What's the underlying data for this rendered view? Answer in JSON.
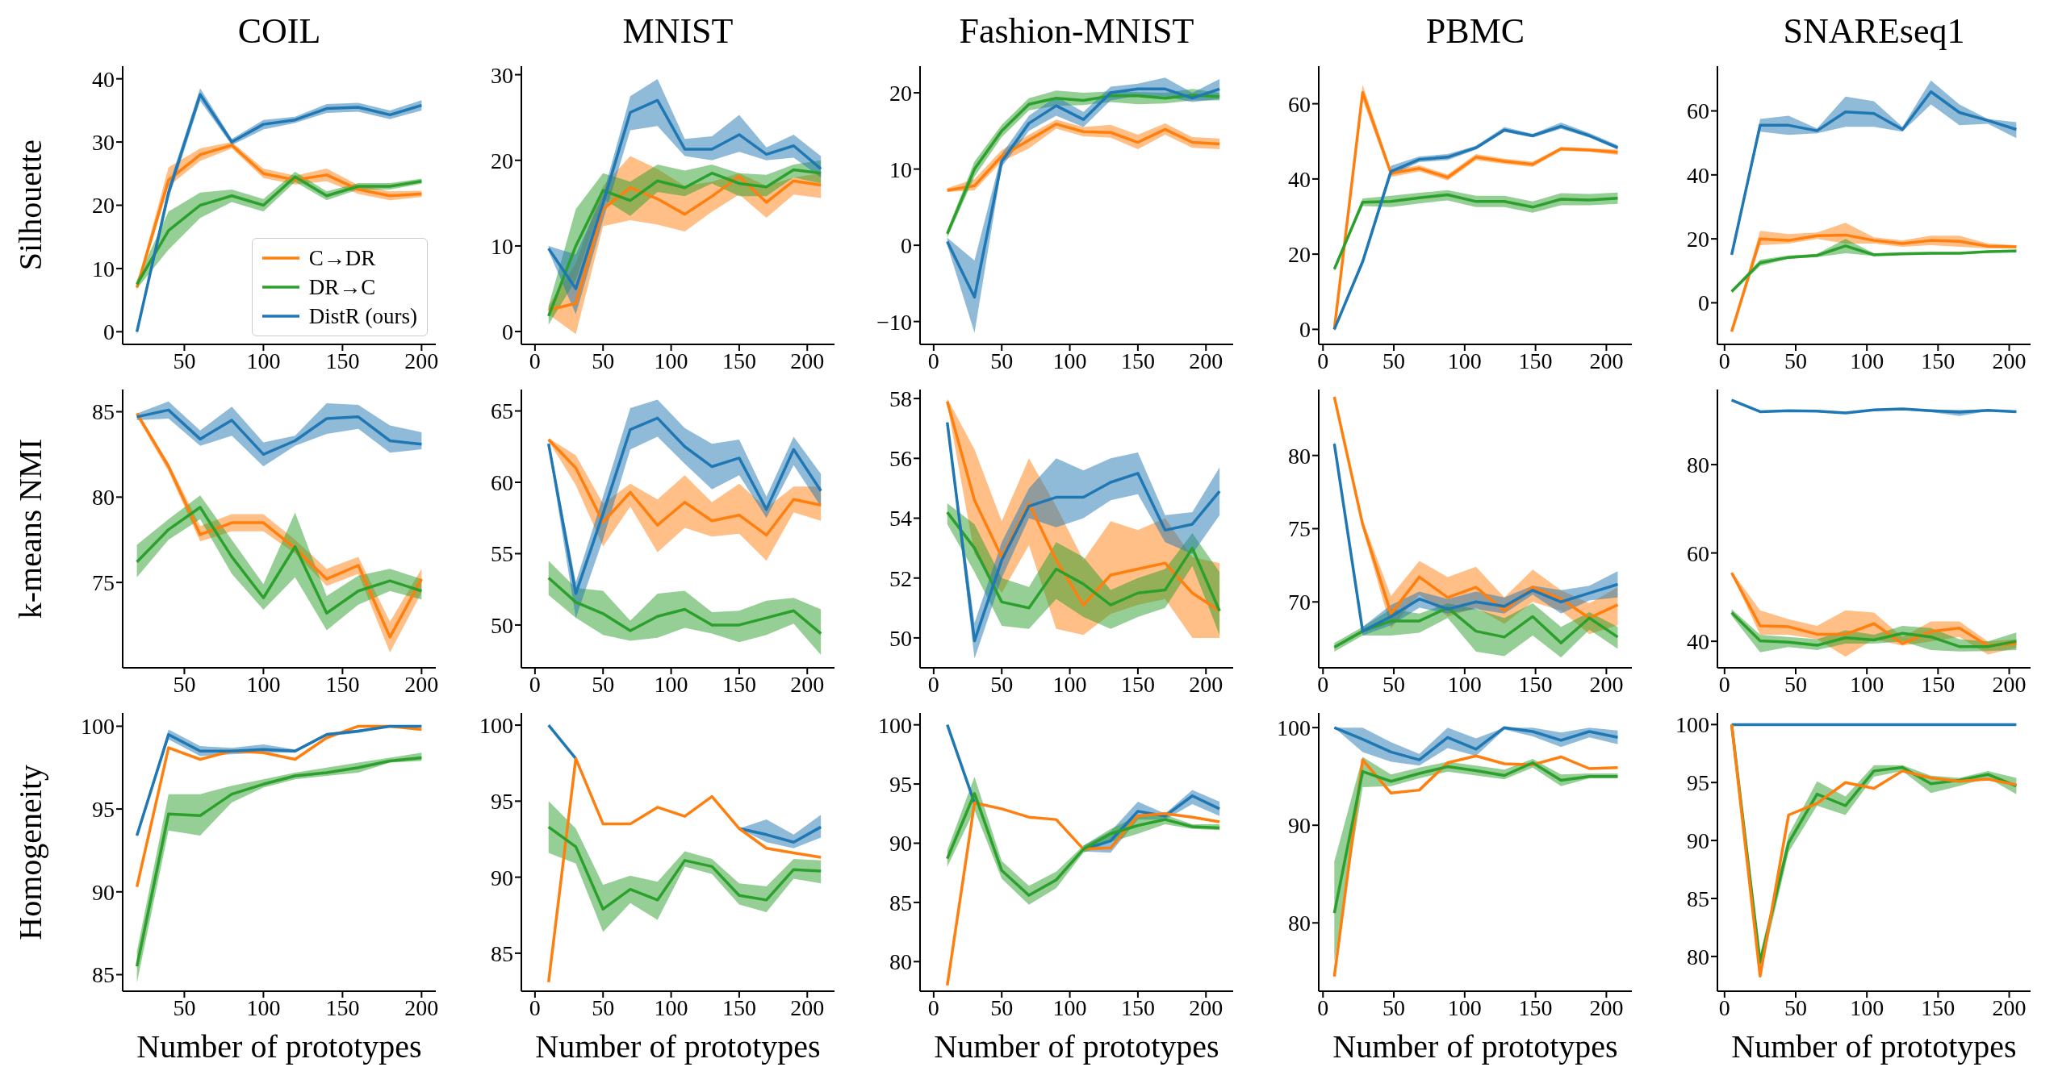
{
  "chart_data": [
    {
      "type": "line",
      "title": "COIL",
      "ylabel": "Silhouette",
      "legend": "lower right",
      "x": [
        20,
        40,
        60,
        80,
        100,
        120,
        140,
        160,
        180,
        200
      ],
      "xlim": [
        11,
        209
      ],
      "xticks": [
        50,
        100,
        150,
        200
      ],
      "ylim": [
        -2,
        42
      ],
      "yticks": [
        0,
        10,
        20,
        30,
        40
      ],
      "series": [
        {
          "name": "C→DR",
          "color": "#ff7f0e",
          "values": [
            7,
            24,
            28,
            29.5,
            25,
            24,
            24.8,
            22.5,
            21.5,
            21.8
          ],
          "lower": [
            6.5,
            23,
            27,
            29,
            24.3,
            23.3,
            23.8,
            21.8,
            20.8,
            21.3
          ],
          "upper": [
            7.5,
            26,
            29,
            30,
            25.8,
            24.7,
            25.8,
            23.2,
            22.2,
            22.3
          ]
        },
        {
          "name": "DR→C",
          "color": "#2ca02c",
          "values": [
            7.5,
            16,
            20,
            21.5,
            20,
            24.5,
            21.5,
            23,
            23,
            23.8
          ],
          "lower": [
            6.8,
            13,
            18,
            20.5,
            19,
            23.7,
            20.8,
            22.5,
            22.5,
            23.4
          ],
          "upper": [
            8.2,
            19,
            22,
            22.5,
            21,
            25.3,
            22.2,
            23.5,
            23.5,
            24.2
          ]
        },
        {
          "name": "DistR (ours)",
          "color": "#1f77b4",
          "values": [
            0,
            22,
            37.5,
            30,
            32.8,
            33.5,
            35.3,
            35.5,
            34.3,
            35.8
          ],
          "lower": [
            -0.5,
            21,
            36.5,
            29.5,
            32,
            33,
            34.6,
            34.8,
            33.6,
            35
          ],
          "upper": [
            0.5,
            23,
            38.5,
            30.5,
            33.5,
            34,
            36,
            36.2,
            35,
            36.6
          ]
        }
      ]
    },
    {
      "type": "line",
      "title": "MNIST",
      "x": [
        10,
        30,
        50,
        70,
        90,
        110,
        130,
        150,
        170,
        190,
        210
      ],
      "xlim": [
        -10,
        220
      ],
      "xticks": [
        0,
        50,
        100,
        150,
        200
      ],
      "ylim": [
        -1.5,
        31
      ],
      "yticks": [
        0,
        10,
        20,
        30
      ],
      "series": [
        {
          "color": "#ff7f0e",
          "values": [
            2.5,
            3.3,
            14.3,
            16.8,
            15.5,
            13.7,
            15.8,
            18.1,
            15.1,
            17.6,
            17.1
          ],
          "lower": [
            2,
            -0.3,
            12.3,
            13,
            12.5,
            11.7,
            14,
            16,
            13.3,
            16,
            15.6
          ],
          "upper": [
            3,
            8,
            17,
            20.5,
            19,
            17,
            17.5,
            18.5,
            17,
            18,
            18.5
          ]
        },
        {
          "color": "#2ca02c",
          "values": [
            1.8,
            10,
            16.5,
            15.3,
            17.6,
            16.8,
            18.5,
            17.3,
            16.9,
            18.9,
            18.5
          ],
          "lower": [
            0.8,
            6,
            15.5,
            13.5,
            16.3,
            15.8,
            17.3,
            15.8,
            15.8,
            18,
            17.3
          ],
          "upper": [
            3,
            14.3,
            18.5,
            17.5,
            19.5,
            18.8,
            19.5,
            18.5,
            18.3,
            19.5,
            20
          ]
        },
        {
          "color": "#1f77b4",
          "values": [
            9.7,
            5,
            15,
            25.6,
            27,
            21.3,
            21.3,
            23,
            20.7,
            21.7,
            19
          ],
          "lower": [
            9.4,
            2,
            13,
            23.5,
            24,
            20.5,
            20,
            21,
            20,
            20.3,
            18
          ],
          "upper": [
            10,
            9,
            16,
            27.5,
            29.5,
            22.5,
            22.8,
            25.3,
            21.5,
            23,
            20.5
          ]
        }
      ]
    },
    {
      "type": "line",
      "title": "Fashion-MNIST",
      "x": [
        10,
        30,
        50,
        70,
        90,
        110,
        130,
        150,
        170,
        190,
        210
      ],
      "xlim": [
        -10,
        220
      ],
      "xticks": [
        0,
        50,
        100,
        150,
        200
      ],
      "ylim": [
        -13,
        23.5
      ],
      "yticks": [
        {
          "value": -10,
          "label": "−10"
        },
        0,
        10,
        20
      ],
      "series": [
        {
          "color": "#ff7f0e",
          "values": [
            7.2,
            7.8,
            11.7,
            13.8,
            15.9,
            14.9,
            14.8,
            13.5,
            15.2,
            13.5,
            13.3
          ],
          "lower": [
            7,
            7.2,
            11,
            12.7,
            15.3,
            14.3,
            14.1,
            12.6,
            14.5,
            12.8,
            12.6
          ],
          "upper": [
            7.5,
            8.7,
            12.5,
            14.5,
            16.5,
            15.5,
            15.8,
            14.5,
            16,
            14.2,
            14
          ]
        },
        {
          "color": "#2ca02c",
          "values": [
            1.5,
            10,
            15,
            18.5,
            19.3,
            19,
            19.6,
            19.6,
            19.3,
            19.7,
            19.5
          ],
          "lower": [
            1,
            9,
            14.2,
            17.7,
            18.3,
            18.4,
            18.8,
            18.5,
            18.6,
            19,
            19
          ],
          "upper": [
            2,
            11,
            15.8,
            19.3,
            20.3,
            20,
            20.2,
            20.1,
            20,
            20.5,
            20
          ]
        },
        {
          "color": "#1f77b4",
          "values": [
            0.5,
            -6.8,
            11,
            16,
            18.3,
            16.5,
            20,
            20.5,
            20.5,
            19.3,
            20.5
          ],
          "lower": [
            0,
            -11.5,
            10.3,
            15,
            17,
            15.5,
            19,
            19.6,
            19.5,
            18.8,
            19.2
          ],
          "upper": [
            1,
            -2,
            12,
            17,
            19.5,
            17.5,
            20.8,
            21.2,
            22,
            20,
            21.8
          ]
        }
      ]
    },
    {
      "type": "line",
      "title": "PBMC",
      "x": [
        8,
        28,
        48,
        68,
        88,
        108,
        128,
        148,
        168,
        188,
        208
      ],
      "xlim": [
        -3,
        218
      ],
      "xticks": [
        0,
        50,
        100,
        150,
        200
      ],
      "ylim": [
        -4,
        70
      ],
      "yticks": [
        0,
        20,
        40,
        60
      ],
      "series": [
        {
          "color": "#ff7f0e",
          "values": [
            0,
            63,
            41.5,
            42.8,
            40.4,
            45.8,
            44.7,
            43.9,
            48,
            47.7,
            47.1
          ],
          "lower": [
            -0.5,
            61,
            40.5,
            42,
            39.6,
            45,
            44,
            43.2,
            47.5,
            47.2,
            46.4
          ],
          "upper": [
            0.5,
            65,
            42.5,
            43.6,
            41.2,
            46.6,
            45.4,
            44.6,
            48.5,
            48.2,
            47.8
          ]
        },
        {
          "color": "#2ca02c",
          "values": [
            16,
            33.8,
            34,
            35,
            35.8,
            34,
            34,
            32.5,
            34.6,
            34.4,
            34.9
          ],
          "lower": [
            15.5,
            32.8,
            32.5,
            33.5,
            34.3,
            32.5,
            32.5,
            31,
            33,
            33,
            33.4
          ],
          "upper": [
            16.5,
            34.8,
            35.5,
            36.3,
            37,
            35.5,
            35.5,
            34,
            36.2,
            36,
            36.4
          ]
        },
        {
          "color": "#1f77b4",
          "values": [
            0,
            18,
            42,
            45.2,
            45.8,
            48.3,
            53,
            51.5,
            54,
            51.5,
            48.3
          ],
          "lower": [
            -0.5,
            17,
            41,
            44.5,
            45,
            47.8,
            52.5,
            51,
            53.3,
            51,
            47.8
          ],
          "upper": [
            0.5,
            19,
            43.5,
            46,
            46.6,
            48.8,
            53.8,
            52,
            55,
            52.2,
            49
          ]
        }
      ]
    },
    {
      "type": "line",
      "title": "SNAREseq1",
      "x": [
        5,
        25,
        45,
        65,
        85,
        105,
        125,
        145,
        165,
        185,
        205
      ],
      "xlim": [
        -5,
        215
      ],
      "xticks": [
        0,
        50,
        100,
        150,
        200
      ],
      "ylim": [
        -13,
        74
      ],
      "yticks": [
        0,
        20,
        40,
        60
      ],
      "series": [
        {
          "color": "#ff7f0e",
          "values": [
            -9,
            20,
            19.5,
            21,
            21.2,
            19.5,
            18.5,
            19.5,
            19.2,
            17.7,
            17.5
          ],
          "lower": [
            -9.5,
            18,
            18.5,
            20,
            18.5,
            18.5,
            17.5,
            18,
            17.5,
            17,
            17
          ],
          "upper": [
            -8.5,
            22.5,
            21.5,
            22,
            25,
            20.5,
            19.5,
            21,
            21,
            18.5,
            18
          ]
        },
        {
          "color": "#2ca02c",
          "values": [
            3.5,
            12.5,
            14.2,
            14.8,
            17.8,
            15,
            15.3,
            15.5,
            15.5,
            16,
            16.2
          ],
          "lower": [
            3,
            11.5,
            13.8,
            14.3,
            15.5,
            14.7,
            15,
            15.2,
            15.2,
            15.7,
            15.9
          ],
          "upper": [
            4,
            13.5,
            14.8,
            15.3,
            20,
            15.5,
            15.8,
            15.8,
            15.8,
            16.3,
            16.6
          ]
        },
        {
          "color": "#1f77b4",
          "values": [
            15,
            55.5,
            55.5,
            53.8,
            59.7,
            59.2,
            54.2,
            66,
            59.5,
            57,
            54.2
          ],
          "lower": [
            14.5,
            53.5,
            52.5,
            53,
            55,
            55,
            53.5,
            62,
            55.5,
            56,
            51.5
          ],
          "upper": [
            15.5,
            57.5,
            58.5,
            54.5,
            64.5,
            63,
            55,
            69.5,
            62,
            57.5,
            56.5
          ]
        }
      ]
    },
    {
      "type": "line",
      "ylabel": "k-means NMI",
      "x": [
        20,
        40,
        60,
        80,
        100,
        120,
        140,
        160,
        180,
        200
      ],
      "xlim": [
        11,
        209
      ],
      "xticks": [
        50,
        100,
        150,
        200
      ],
      "ylim": [
        70,
        86.3
      ],
      "yticks": [
        75,
        80,
        85
      ],
      "series": [
        {
          "color": "#ff7f0e",
          "values": [
            84.9,
            81.8,
            77.8,
            78.5,
            78.5,
            77,
            75.2,
            76,
            71.8,
            75.2
          ],
          "lower": [
            84.7,
            81.5,
            77.4,
            78,
            78,
            76.7,
            74.8,
            75.5,
            70.9,
            74.4
          ],
          "upper": [
            85,
            82,
            78.3,
            79,
            79,
            77.5,
            75.8,
            76.5,
            72.7,
            75.8
          ]
        },
        {
          "color": "#2ca02c",
          "values": [
            76.2,
            78.1,
            79.4,
            76.5,
            74.1,
            77.1,
            73.2,
            74.5,
            75.1,
            74.5
          ],
          "lower": [
            75.3,
            77.5,
            78.7,
            75.5,
            73.4,
            75.3,
            72.2,
            73.7,
            74.5,
            74
          ],
          "upper": [
            77.2,
            78.7,
            80.1,
            77.5,
            74.9,
            79.1,
            74.2,
            75.4,
            75.8,
            75.2
          ]
        },
        {
          "color": "#1f77b4",
          "values": [
            84.7,
            85.1,
            83.4,
            84.5,
            82.5,
            83.3,
            84.6,
            84.7,
            83.3,
            83.1
          ],
          "lower": [
            84.5,
            84.6,
            83,
            83.6,
            81.8,
            83,
            83.7,
            84,
            82.6,
            82.8
          ],
          "upper": [
            84.9,
            85.6,
            83.9,
            85.3,
            83.2,
            83.6,
            85.5,
            85.4,
            84.2,
            83.8
          ]
        }
      ]
    },
    {
      "type": "line",
      "x": [
        10,
        30,
        50,
        70,
        90,
        110,
        130,
        150,
        170,
        190,
        210
      ],
      "xlim": [
        -10,
        220
      ],
      "xticks": [
        0,
        50,
        100,
        150,
        200
      ],
      "ylim": [
        47,
        66.5
      ],
      "yticks": [
        50,
        55,
        60,
        65
      ],
      "series": [
        {
          "color": "#ff7f0e",
          "values": [
            63,
            61,
            57.2,
            59.3,
            57,
            58.6,
            57.3,
            57.7,
            56.3,
            58.8,
            58.4
          ],
          "lower": [
            62.9,
            59.8,
            55.5,
            58.3,
            55.1,
            56.8,
            56.2,
            56.4,
            54.5,
            57.9,
            57.3
          ],
          "upper": [
            63.1,
            61.9,
            58.5,
            59.9,
            58.8,
            60.5,
            58.6,
            59.9,
            58.2,
            59.7,
            59.7
          ]
        },
        {
          "color": "#2ca02c",
          "values": [
            53.3,
            51.6,
            50.8,
            49.6,
            50.6,
            51.1,
            50,
            50,
            50.5,
            51,
            49.4
          ],
          "lower": [
            52.1,
            50.5,
            49.3,
            48.9,
            49.1,
            49.8,
            49.4,
            48.8,
            49.3,
            50.1,
            47.9
          ],
          "upper": [
            54.5,
            52.6,
            52.4,
            50.3,
            52.2,
            52.4,
            50.9,
            51,
            51.7,
            51.9,
            51.1
          ]
        },
        {
          "color": "#1f77b4",
          "values": [
            62.7,
            52.2,
            57.8,
            63.7,
            64.5,
            62.5,
            61.1,
            61.7,
            58.1,
            62.3,
            59.4
          ],
          "lower": [
            62.4,
            50.5,
            56,
            62.3,
            63.2,
            61.3,
            59.5,
            60.5,
            57.5,
            61.2,
            58.3
          ],
          "upper": [
            63,
            53,
            59,
            65.2,
            65.8,
            63.8,
            62.7,
            63,
            59,
            63.2,
            60.6
          ]
        }
      ]
    },
    {
      "type": "line",
      "x": [
        10,
        30,
        50,
        70,
        90,
        110,
        130,
        150,
        170,
        190,
        210
      ],
      "xlim": [
        -10,
        220
      ],
      "xticks": [
        0,
        50,
        100,
        150,
        200
      ],
      "ylim": [
        49,
        58.3
      ],
      "yticks": [
        50,
        52,
        54,
        56,
        58
      ],
      "series": [
        {
          "color": "#ff7f0e",
          "values": [
            57.9,
            54.6,
            52.7,
            54.5,
            52.6,
            51.1,
            52.1,
            52.3,
            52.5,
            51.5,
            50.9
          ],
          "lower": [
            57.8,
            52.8,
            51.5,
            53.1,
            50.3,
            50.1,
            50.8,
            51.1,
            51.3,
            50,
            50
          ],
          "upper": [
            58,
            56.3,
            53.9,
            56,
            54.4,
            52.6,
            53.9,
            53.6,
            54,
            52.7,
            52.5
          ]
        },
        {
          "color": "#2ca02c",
          "values": [
            54.2,
            53,
            51.2,
            51,
            52.3,
            51.8,
            51.1,
            51.5,
            51.6,
            53,
            50.9
          ],
          "lower": [
            53.8,
            52.2,
            50.4,
            50.3,
            51.3,
            50.7,
            50.3,
            50.7,
            51,
            52.4,
            50.1
          ],
          "upper": [
            54.5,
            53.8,
            52,
            51.7,
            53.2,
            52.7,
            51.6,
            52,
            52.3,
            53.5,
            52.2
          ]
        },
        {
          "color": "#1f77b4",
          "values": [
            57.2,
            49.9,
            52.6,
            54.4,
            54.7,
            54.7,
            55.2,
            55.5,
            53.6,
            53.8,
            54.9
          ],
          "lower": [
            57.1,
            49.3,
            52,
            54,
            53.7,
            54,
            54.6,
            54.8,
            53.2,
            52.8,
            54.1
          ],
          "upper": [
            57.3,
            50.5,
            53.2,
            55,
            56,
            55.6,
            56,
            56.2,
            54.1,
            54.2,
            55.7
          ]
        }
      ]
    },
    {
      "type": "line",
      "x": [
        8,
        28,
        48,
        68,
        88,
        108,
        128,
        148,
        168,
        188,
        208
      ],
      "xlim": [
        -3,
        218
      ],
      "xticks": [
        0,
        50,
        100,
        150,
        200
      ],
      "ylim": [
        65.5,
        84.5
      ],
      "yticks": [
        70,
        75,
        80
      ],
      "series": [
        {
          "color": "#ff7f0e",
          "values": [
            84,
            75.3,
            69.2,
            71.7,
            70.3,
            71,
            69.4,
            71,
            70.2,
            68.9,
            69.8
          ],
          "lower": [
            83.9,
            75,
            68.2,
            70.5,
            69,
            69.6,
            68.5,
            70,
            69.4,
            67.8,
            68.4
          ],
          "upper": [
            84.1,
            75.6,
            70.4,
            72.8,
            71.7,
            72.4,
            70.3,
            72.2,
            70.8,
            69.9,
            71
          ]
        },
        {
          "color": "#2ca02c",
          "values": [
            66.9,
            68,
            68.7,
            68.7,
            69.6,
            68,
            67.6,
            69,
            67.2,
            68.9,
            67.6
          ],
          "lower": [
            66.6,
            67.7,
            67.7,
            67.9,
            68.9,
            66.6,
            66.3,
            67.7,
            66.2,
            68.1,
            66.8
          ],
          "upper": [
            67.2,
            68.3,
            69.5,
            69.2,
            69.9,
            69.5,
            68.9,
            69.9,
            68.3,
            69.3,
            68.3
          ]
        },
        {
          "color": "#1f77b4",
          "values": [
            80.8,
            68,
            69,
            70.2,
            69.5,
            70,
            69.7,
            70.8,
            70,
            70.6,
            71.2
          ],
          "lower": [
            80.6,
            67.7,
            68.4,
            69.6,
            69.2,
            69.5,
            69.2,
            70.5,
            69.2,
            70.1,
            70.3
          ],
          "upper": [
            81,
            68.3,
            69.8,
            70.7,
            70.2,
            70.7,
            70.3,
            71.1,
            70.8,
            71.1,
            72.1
          ]
        }
      ]
    },
    {
      "type": "line",
      "x": [
        5,
        25,
        45,
        65,
        85,
        105,
        125,
        145,
        165,
        185,
        205
      ],
      "xlim": [
        -5,
        215
      ],
      "xticks": [
        0,
        50,
        100,
        150,
        200
      ],
      "ylim": [
        34,
        97
      ],
      "yticks": [
        40,
        60,
        80
      ],
      "series": [
        {
          "color": "#ff7f0e",
          "values": [
            55.5,
            43.5,
            43.3,
            41.6,
            41.6,
            44,
            39.5,
            42.2,
            43,
            39,
            39.5
          ],
          "lower": [
            55.2,
            41.5,
            41.5,
            40.5,
            36.5,
            40.5,
            39,
            40,
            41,
            37,
            38.5
          ],
          "upper": [
            55.8,
            47,
            45,
            43.5,
            47,
            46.5,
            41,
            44.5,
            44.5,
            40,
            40.5
          ]
        },
        {
          "color": "#2ca02c",
          "values": [
            46.5,
            40.1,
            39.8,
            39.1,
            40.8,
            40.3,
            41.8,
            41,
            38.8,
            38.8,
            40
          ],
          "lower": [
            45.8,
            37.5,
            38.7,
            38,
            39.5,
            39.5,
            40,
            38,
            37.7,
            37.8,
            38
          ],
          "upper": [
            47.3,
            41.5,
            41,
            40.5,
            42.5,
            41.5,
            43.5,
            43,
            40.5,
            40,
            42
          ]
        },
        {
          "color": "#1f77b4",
          "values": [
            94.6,
            92,
            92.2,
            92.1,
            91.7,
            92.4,
            92.6,
            92.2,
            91.9,
            92.3,
            92
          ],
          "lower": [
            94.4,
            91.8,
            92,
            91.9,
            91.5,
            92.2,
            92.4,
            91.9,
            91,
            92.1,
            91.8
          ],
          "upper": [
            94.8,
            92.2,
            92.4,
            92.3,
            91.9,
            92.6,
            92.8,
            92.5,
            92.4,
            92.5,
            92.2
          ]
        }
      ]
    },
    {
      "type": "line",
      "ylabel": "Homogeneity",
      "xlabel": "Number of prototypes",
      "x": [
        20,
        40,
        60,
        80,
        100,
        120,
        140,
        160,
        180,
        200
      ],
      "xlim": [
        11,
        209
      ],
      "xticks": [
        50,
        100,
        150,
        200
      ],
      "ylim": [
        84,
        100.8
      ],
      "yticks": [
        85,
        90,
        95,
        100
      ],
      "series": [
        {
          "color": "#ff7f0e",
          "values": [
            90.3,
            98.7,
            98,
            98.5,
            98.4,
            98,
            99.3,
            100,
            100,
            99.8
          ]
        },
        {
          "color": "#2ca02c",
          "values": [
            85.5,
            94.7,
            94.6,
            95.9,
            96.5,
            97,
            97.2,
            97.5,
            97.9,
            98.1
          ],
          "lower": [
            84.5,
            93.7,
            93.4,
            95.4,
            96.3,
            96.8,
            97,
            97.2,
            97.8,
            97.9
          ],
          "upper": [
            86.4,
            95.9,
            95.9,
            96.4,
            96.8,
            97.2,
            97.5,
            97.8,
            98.1,
            98.4
          ]
        },
        {
          "color": "#1f77b4",
          "values": [
            93.4,
            99.5,
            98.5,
            98.5,
            98.6,
            98.5,
            99.5,
            99.7,
            100,
            100
          ],
          "lower": [
            93.3,
            99.2,
            98.2,
            98.3,
            98.4,
            98.4,
            99.4,
            99.6,
            100,
            100
          ],
          "upper": [
            93.5,
            99.8,
            98.8,
            98.7,
            98.9,
            98.6,
            99.6,
            99.8,
            100,
            100
          ]
        }
      ]
    },
    {
      "type": "line",
      "xlabel": "Number of prototypes",
      "x": [
        10,
        30,
        50,
        70,
        90,
        110,
        130,
        150,
        170,
        190,
        210
      ],
      "xlim": [
        -10,
        220
      ],
      "xticks": [
        0,
        50,
        100,
        150,
        200
      ],
      "ylim": [
        82.5,
        100.8
      ],
      "yticks": [
        85,
        90,
        95,
        100
      ],
      "series": [
        {
          "color": "#1f77b4",
          "values": [
            100,
            97.8,
            null,
            null,
            null,
            null,
            null,
            93.2,
            92.8,
            92.3,
            93.3
          ],
          "lower": [
            null,
            null,
            null,
            null,
            null,
            null,
            null,
            93.2,
            92.3,
            91.9,
            92.6
          ],
          "upper": [
            null,
            null,
            null,
            null,
            null,
            null,
            null,
            93.2,
            93.8,
            92.8,
            94.1
          ]
        },
        {
          "color": "#ff7f0e",
          "values": [
            83.1,
            97.8,
            93.5,
            93.5,
            94.6,
            94,
            95.3,
            93.2,
            91.9,
            91.6,
            91.3
          ]
        },
        {
          "color": "#2ca02c",
          "values": [
            93.3,
            92,
            87.9,
            89.2,
            88.5,
            91.1,
            90.7,
            88.8,
            88.5,
            90.5,
            90.4
          ],
          "lower": [
            91.6,
            90.9,
            86.4,
            88.3,
            87.2,
            90.7,
            90.2,
            88.2,
            87.7,
            89.9,
            89.6
          ],
          "upper": [
            95,
            93.2,
            89.5,
            90.1,
            89.7,
            91.7,
            91.2,
            89.6,
            89.4,
            91.2,
            91.1
          ]
        }
      ]
    },
    {
      "type": "line",
      "xlabel": "Number of prototypes",
      "x": [
        10,
        30,
        50,
        70,
        90,
        110,
        130,
        150,
        170,
        190,
        210
      ],
      "xlim": [
        -10,
        220
      ],
      "xticks": [
        0,
        50,
        100,
        150,
        200
      ],
      "ylim": [
        77.5,
        101
      ],
      "yticks": [
        80,
        85,
        90,
        95,
        100
      ],
      "series": [
        {
          "color": "#1f77b4",
          "values": [
            100,
            93.4,
            null,
            null,
            null,
            89.5,
            90.2,
            92.7,
            92.3,
            94,
            92.9
          ],
          "lower": [
            null,
            null,
            null,
            null,
            null,
            89.3,
            89.2,
            92,
            92,
            93.3,
            92.3
          ],
          "upper": [
            null,
            null,
            null,
            null,
            null,
            89.8,
            91,
            93.5,
            92.5,
            94.5,
            93.5
          ]
        },
        {
          "color": "#ff7f0e",
          "values": [
            78,
            93.4,
            92.9,
            92.2,
            92,
            89.5,
            89.6,
            92.3,
            92.5,
            92.2,
            91.8
          ]
        },
        {
          "color": "#2ca02c",
          "values": [
            88.7,
            94.2,
            87.7,
            85.6,
            86.9,
            89.5,
            90.8,
            91.5,
            92,
            91.4,
            91.3
          ],
          "lower": [
            88,
            92.8,
            87,
            84.8,
            86.2,
            89.2,
            90.1,
            90.8,
            91.6,
            91.2,
            91.1
          ],
          "upper": [
            89.4,
            95.6,
            88.5,
            86.4,
            87.6,
            89.8,
            91.2,
            92.3,
            92.4,
            91.6,
            91.6
          ]
        }
      ]
    },
    {
      "type": "line",
      "xlabel": "Number of prototypes",
      "x": [
        8,
        28,
        48,
        68,
        88,
        108,
        128,
        148,
        168,
        188,
        208
      ],
      "xlim": [
        -3,
        218
      ],
      "xticks": [
        0,
        50,
        100,
        150,
        200
      ],
      "ylim": [
        73,
        101.5
      ],
      "yticks": [
        80,
        90,
        100
      ],
      "series": [
        {
          "color": "#ff7f0e",
          "values": [
            74.5,
            96.7,
            93.3,
            93.6,
            96.4,
            97.1,
            96.3,
            96.2,
            97,
            95.8,
            95.9
          ]
        },
        {
          "color": "#2ca02c",
          "values": [
            81,
            95.5,
            94.5,
            95.3,
            96,
            95.6,
            95.1,
            96.4,
            94.6,
            95,
            95
          ],
          "lower": [
            76,
            93.9,
            94,
            94.8,
            95.5,
            95.1,
            94.7,
            95.9,
            94,
            94.8,
            94.8
          ],
          "upper": [
            86.3,
            97,
            95.2,
            95.9,
            96.5,
            96.1,
            95.7,
            96.8,
            95.2,
            95.3,
            95.3
          ]
        },
        {
          "color": "#1f77b4",
          "values": [
            100,
            98.8,
            97.5,
            96.7,
            99,
            97.8,
            100,
            99.6,
            98.7,
            99.6,
            99
          ],
          "lower": [
            100,
            97.5,
            96.5,
            96.1,
            97.9,
            97.1,
            99.8,
            99.1,
            98,
            99,
            98.3
          ],
          "upper": [
            100,
            100,
            98.5,
            97.3,
            100,
            98.9,
            100,
            100,
            99.5,
            100,
            99.7
          ]
        }
      ]
    },
    {
      "type": "line",
      "xlabel": "Number of prototypes",
      "x": [
        5,
        25,
        45,
        65,
        85,
        105,
        125,
        145,
        165,
        185,
        205
      ],
      "xlim": [
        -5,
        215
      ],
      "xticks": [
        0,
        50,
        100,
        150,
        200
      ],
      "ylim": [
        77,
        101
      ],
      "yticks": [
        80,
        85,
        90,
        95,
        100
      ],
      "series": [
        {
          "color": "#1f77b4",
          "values": [
            100,
            100,
            100,
            100,
            100,
            100,
            100,
            100,
            100,
            100,
            100
          ]
        },
        {
          "color": "#2ca02c",
          "values": [
            100,
            79.5,
            89.8,
            94,
            93,
            96,
            96.3,
            94.9,
            95.2,
            95.7,
            94.7
          ],
          "lower": [
            100,
            78.5,
            89,
            93,
            92.2,
            95.5,
            96,
            94.1,
            94.7,
            95.4,
            94
          ],
          "upper": [
            100,
            80.2,
            90.5,
            95.1,
            93.8,
            96.5,
            96.5,
            95.6,
            95.4,
            96,
            95.4
          ]
        },
        {
          "color": "#ff7f0e",
          "values": [
            100,
            78.3,
            92.2,
            93.2,
            95,
            94.5,
            96,
            95.4,
            95.1,
            95.3,
            94.8
          ]
        }
      ]
    }
  ]
}
